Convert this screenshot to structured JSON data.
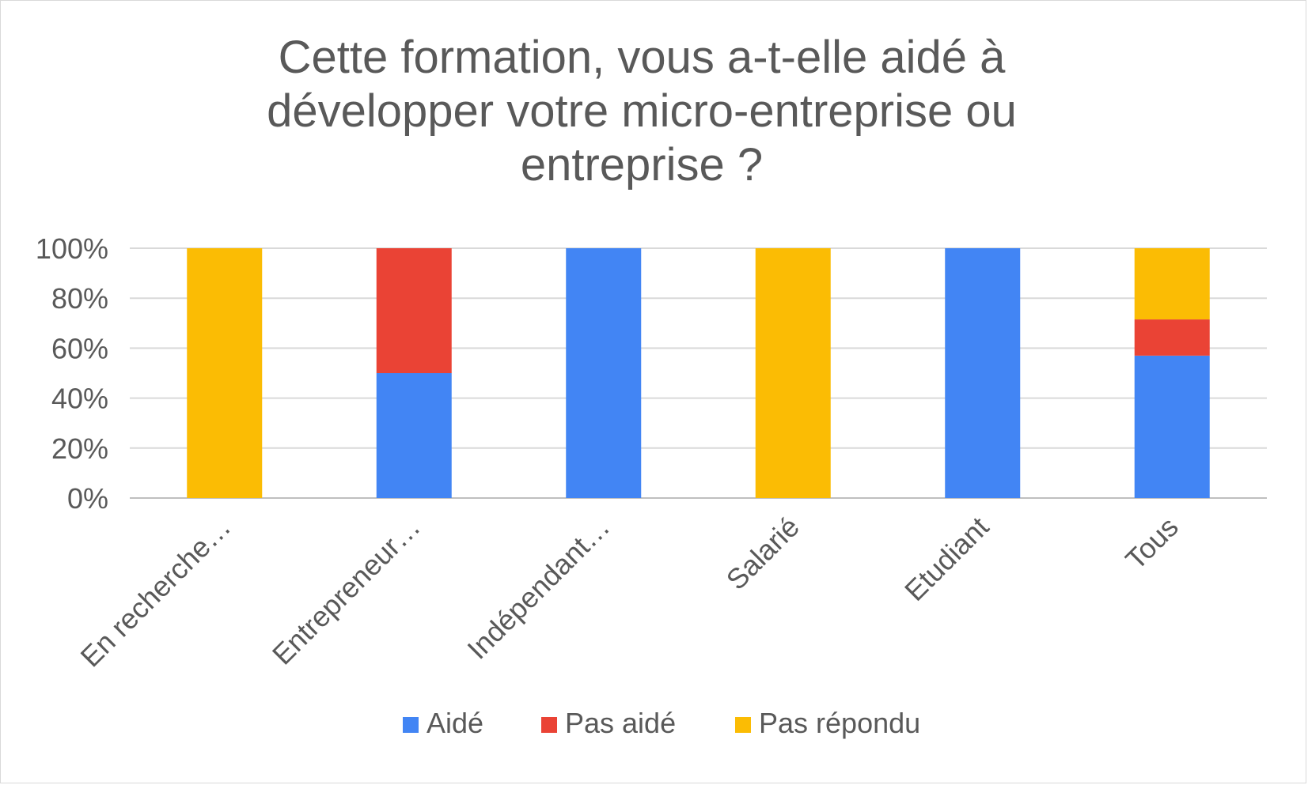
{
  "chart_data": {
    "type": "bar",
    "stacked": true,
    "title": "Cette formation, vous a-t-elle aidé à\ndévelopper votre micro-entreprise ou\nentreprise ?",
    "categories": [
      "En recherche…",
      "Entrepreneur…",
      "Indépendant…",
      "Salarié",
      "Etudiant",
      "Tous"
    ],
    "series": [
      {
        "name": "Aidé",
        "color": "#4285f4",
        "values": [
          0,
          50,
          100,
          0,
          100,
          57
        ]
      },
      {
        "name": "Pas aidé",
        "color": "#ea4335",
        "values": [
          0,
          50,
          0,
          0,
          0,
          14.5
        ]
      },
      {
        "name": "Pas répondu",
        "color": "#fbbc04",
        "values": [
          100,
          0,
          0,
          100,
          0,
          28.5
        ]
      }
    ],
    "yticks": [
      "0%",
      "20%",
      "40%",
      "60%",
      "80%",
      "100%"
    ],
    "ylim": [
      0,
      100
    ],
    "xlabel": "",
    "ylabel": "",
    "grid": true,
    "legend_position": "bottom"
  }
}
